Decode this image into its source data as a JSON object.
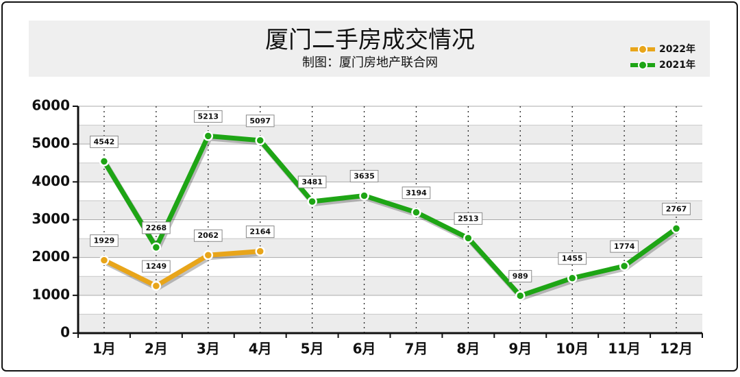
{
  "chart_data": {
    "type": "line",
    "title": "厦门二手房成交情况",
    "subtitle": "制图：厦门房地产联合网",
    "categories": [
      "1月",
      "2月",
      "3月",
      "4月",
      "5月",
      "6月",
      "7月",
      "8月",
      "9月",
      "10月",
      "11月",
      "12月"
    ],
    "series": [
      {
        "name": "2022年",
        "color": "#e8a51a",
        "values": [
          1929,
          1249,
          2062,
          2164,
          null,
          null,
          null,
          null,
          null,
          null,
          null,
          null
        ]
      },
      {
        "name": "2021年",
        "color": "#1ea515",
        "values": [
          4542,
          2268,
          5213,
          5097,
          3481,
          3635,
          3194,
          2513,
          989,
          1455,
          1774,
          2767
        ]
      }
    ],
    "ylim": [
      0,
      6000
    ],
    "yticks": [
      0,
      1000,
      2000,
      3000,
      4000,
      5000,
      6000
    ],
    "grid": true,
    "legend": "top-right"
  }
}
